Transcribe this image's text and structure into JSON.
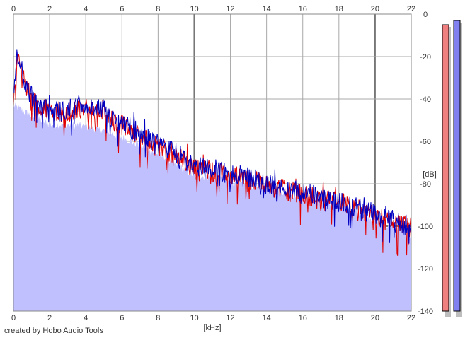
{
  "credit": "created by Hobo Audio Tools",
  "chart_data": {
    "type": "area",
    "title": "",
    "xlabel": "[kHz]",
    "ylabel": "[dB]",
    "xlim": [
      0,
      22
    ],
    "ylim": [
      -140,
      0
    ],
    "x_ticks": [
      0,
      2,
      4,
      6,
      8,
      10,
      12,
      14,
      16,
      18,
      20,
      22
    ],
    "y_ticks": [
      0,
      -20,
      -40,
      -60,
      -80,
      -100,
      -120,
      -140
    ],
    "grid": true,
    "colors": {
      "red_series": "#e00000",
      "blue_series": "#0000c0",
      "fill": "#c0c0ff",
      "meter_red": "#f08080",
      "meter_blue": "#8080f0"
    },
    "series": [
      {
        "color": "red",
        "x": [
          0,
          0.2,
          0.5,
          1,
          1.5,
          2,
          2.5,
          3,
          3.5,
          4,
          4.5,
          5,
          5.5,
          6,
          6.5,
          7,
          7.5,
          8,
          8.5,
          9,
          9.5,
          10,
          10.5,
          11,
          11.5,
          12,
          12.5,
          13,
          13.5,
          14,
          14.5,
          15,
          15.5,
          16,
          16.5,
          17,
          17.5,
          18,
          18.5,
          19,
          19.5,
          20,
          20.5,
          21,
          21.5,
          22
        ],
        "values": [
          -42,
          -22,
          -30,
          -40,
          -45,
          -44,
          -47,
          -46,
          -45,
          -44,
          -47,
          -45,
          -51,
          -52,
          -55,
          -57,
          -60,
          -62,
          -64,
          -67,
          -70,
          -73,
          -73,
          -74,
          -75,
          -77,
          -77,
          -78,
          -79,
          -81,
          -81,
          -83,
          -84,
          -85,
          -86,
          -88,
          -88,
          -89,
          -90,
          -92,
          -93,
          -96,
          -97,
          -99,
          -100,
          -101
        ]
      },
      {
        "color": "blue",
        "x": [
          0,
          0.2,
          0.5,
          1,
          1.5,
          2,
          2.5,
          3,
          3.5,
          4,
          4.5,
          5,
          5.5,
          6,
          6.5,
          7,
          7.5,
          8,
          8.5,
          9,
          9.5,
          10,
          10.5,
          11,
          11.5,
          12,
          12.5,
          13,
          13.5,
          14,
          14.5,
          15,
          15.5,
          16,
          16.5,
          17,
          17.5,
          18,
          18.5,
          19,
          19.5,
          20,
          20.5,
          21,
          21.5,
          22
        ],
        "values": [
          -40,
          -20,
          -28,
          -39,
          -44,
          -43,
          -46,
          -45,
          -44,
          -43,
          -46,
          -44,
          -50,
          -51,
          -54,
          -56,
          -59,
          -61,
          -63,
          -66,
          -69,
          -72,
          -72,
          -73,
          -74,
          -76,
          -76,
          -77,
          -78,
          -80,
          -80,
          -82,
          -83,
          -84,
          -85,
          -87,
          -87,
          -88,
          -89,
          -91,
          -92,
          -95,
          -96,
          -98,
          -99,
          -100
        ]
      }
    ],
    "fill_floor": [
      [
        0,
        -43
      ],
      [
        1,
        -48
      ],
      [
        2,
        -52
      ],
      [
        3,
        -52
      ],
      [
        4,
        -53
      ],
      [
        5,
        -55
      ],
      [
        6,
        -58
      ],
      [
        7,
        -62
      ],
      [
        8,
        -66
      ],
      [
        9,
        -71
      ],
      [
        10,
        -76
      ],
      [
        11,
        -77
      ],
      [
        12,
        -79
      ],
      [
        13,
        -81
      ],
      [
        14,
        -82
      ],
      [
        15,
        -84
      ],
      [
        16,
        -86
      ],
      [
        17,
        -88
      ],
      [
        18,
        -90
      ],
      [
        19,
        -93
      ],
      [
        20,
        -97
      ],
      [
        21,
        -101
      ],
      [
        22,
        -104
      ]
    ],
    "meters": [
      {
        "color": "red",
        "level_db": -5
      },
      {
        "color": "blue",
        "level_db": -3
      }
    ]
  }
}
